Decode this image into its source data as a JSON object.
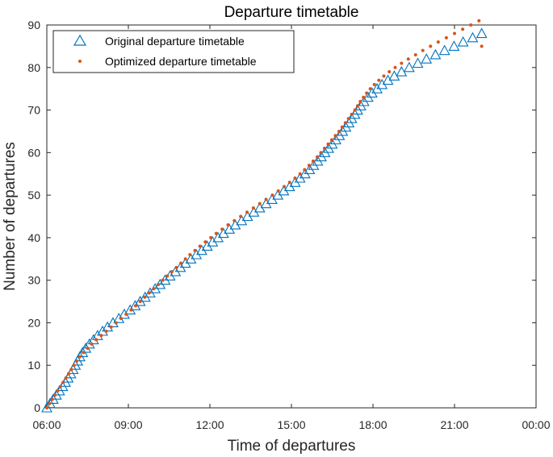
{
  "chart_data": {
    "type": "scatter",
    "title": "Departure timetable",
    "xlabel": "Time of departures",
    "ylabel": "Number of departures",
    "xlim_hours": [
      6,
      24
    ],
    "ylim": [
      0,
      90
    ],
    "x_ticks": [
      "06:00",
      "09:00",
      "12:00",
      "15:00",
      "18:00",
      "21:00",
      "00:00"
    ],
    "y_ticks": [
      0,
      10,
      20,
      30,
      40,
      50,
      60,
      70,
      80,
      90
    ],
    "grid": false,
    "legend_position": "top-left",
    "series": [
      {
        "name": "Original departure timetable",
        "marker": "triangle",
        "color": "#0072BD",
        "x": [
          "06:00",
          "06:07",
          "06:14",
          "06:21",
          "06:28",
          "06:35",
          "06:41",
          "06:47",
          "06:53",
          "06:58",
          "07:03",
          "07:08",
          "07:13",
          "07:19",
          "07:26",
          "07:34",
          "07:43",
          "07:52",
          "08:03",
          "08:14",
          "08:26",
          "08:39",
          "08:51",
          "09:04",
          "09:15",
          "09:26",
          "09:37",
          "09:48",
          "09:59",
          "10:10",
          "10:21",
          "10:32",
          "10:44",
          "10:55",
          "11:06",
          "11:18",
          "11:30",
          "11:42",
          "11:54",
          "12:06",
          "12:18",
          "12:30",
          "12:43",
          "12:56",
          "13:10",
          "13:23",
          "13:37",
          "13:50",
          "14:04",
          "14:17",
          "14:30",
          "14:43",
          "14:56",
          "15:08",
          "15:19",
          "15:30",
          "15:40",
          "15:49",
          "15:58",
          "16:06",
          "16:14",
          "16:22",
          "16:30",
          "16:38",
          "16:46",
          "16:53",
          "17:00",
          "17:07",
          "17:13",
          "17:20",
          "17:26",
          "17:33",
          "17:40",
          "17:49",
          "17:58",
          "18:09",
          "18:20",
          "18:33",
          "18:47",
          "19:03",
          "19:20",
          "19:39",
          "19:58",
          "20:18",
          "20:38",
          "20:59",
          "21:19",
          "21:40",
          "22:00"
        ],
        "y": [
          0,
          1,
          2,
          3,
          4,
          5,
          6,
          7,
          8,
          9,
          10,
          11,
          12,
          13,
          14,
          15,
          16,
          17,
          18,
          19,
          20,
          21,
          22,
          23,
          24,
          25,
          26,
          27,
          28,
          29,
          30,
          31,
          32,
          33,
          34,
          35,
          36,
          37,
          38,
          39,
          40,
          41,
          42,
          43,
          44,
          45,
          46,
          47,
          48,
          49,
          50,
          51,
          52,
          53,
          54,
          55,
          56,
          57,
          58,
          59,
          60,
          61,
          62,
          63,
          64,
          65,
          66,
          67,
          68,
          69,
          70,
          71,
          72,
          73,
          74,
          75,
          76,
          77,
          78,
          79,
          80,
          81,
          82,
          83,
          84,
          85,
          86,
          87,
          88
        ]
      },
      {
        "name": "Optimized departure timetable",
        "marker": "dot",
        "color": "#D95319",
        "x": [
          "06:00",
          "06:06",
          "06:12",
          "06:18",
          "06:24",
          "06:30",
          "06:36",
          "06:42",
          "06:48",
          "06:54",
          "07:00",
          "07:06",
          "07:13",
          "07:21",
          "07:30",
          "07:39",
          "07:49",
          "08:00",
          "08:11",
          "08:22",
          "08:33",
          "08:44",
          "08:55",
          "09:06",
          "09:16",
          "09:26",
          "09:36",
          "09:46",
          "09:56",
          "10:06",
          "10:16",
          "10:26",
          "10:36",
          "10:46",
          "10:56",
          "11:06",
          "11:16",
          "11:27",
          "11:38",
          "11:50",
          "12:02",
          "12:14",
          "12:27",
          "12:40",
          "12:54",
          "13:08",
          "13:22",
          "13:36",
          "13:50",
          "14:04",
          "14:18",
          "14:31",
          "14:44",
          "14:56",
          "15:08",
          "15:19",
          "15:29",
          "15:39",
          "15:48",
          "15:57",
          "16:05",
          "16:13",
          "16:21",
          "16:29",
          "16:37",
          "16:45",
          "16:52",
          "16:59",
          "17:06",
          "17:13",
          "17:20",
          "17:26",
          "17:32",
          "17:39",
          "17:46",
          "17:54",
          "18:03",
          "18:13",
          "18:24",
          "18:36",
          "18:49",
          "19:03",
          "19:18",
          "19:34",
          "19:50",
          "20:07",
          "20:24",
          "20:42",
          "21:00",
          "21:18",
          "21:36",
          "21:54",
          "22:00"
        ],
        "y": [
          0,
          1,
          2,
          3,
          4,
          5,
          6,
          7,
          8,
          9,
          10,
          11,
          12,
          13,
          14,
          15,
          16,
          17,
          18,
          19,
          20,
          21,
          22,
          23,
          24,
          25,
          26,
          27,
          28,
          29,
          30,
          31,
          32,
          33,
          34,
          35,
          36,
          37,
          38,
          39,
          40,
          41,
          42,
          43,
          44,
          45,
          46,
          47,
          48,
          49,
          50,
          51,
          52,
          53,
          54,
          55,
          56,
          57,
          58,
          59,
          60,
          61,
          62,
          63,
          64,
          65,
          66,
          67,
          68,
          69,
          70,
          71,
          72,
          73,
          74,
          75,
          76,
          77,
          78,
          79,
          80,
          81,
          82,
          83,
          84,
          85,
          86,
          87,
          88,
          89,
          90,
          91,
          85
        ]
      }
    ]
  }
}
